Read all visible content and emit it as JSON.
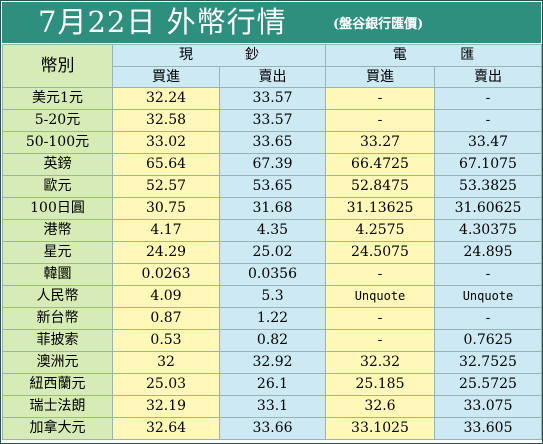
{
  "title": "7月22日 外幣行情",
  "subtitle": "(盤谷銀行匯價)",
  "headers": {
    "currency": "幣別",
    "cash_chars": [
      "現",
      "鈔"
    ],
    "wire_chars": [
      "電",
      "匯"
    ],
    "buy": "買進",
    "sell": "賣出"
  },
  "rows": [
    {
      "name": "美元1元",
      "cash_buy": "32.24",
      "cash_sell": "33.57",
      "wire_buy": "-",
      "wire_sell": "-"
    },
    {
      "name": "5-20元",
      "cash_buy": "32.58",
      "cash_sell": "33.57",
      "wire_buy": "-",
      "wire_sell": "-"
    },
    {
      "name": "50-100元",
      "cash_buy": "33.02",
      "cash_sell": "33.65",
      "wire_buy": "33.27",
      "wire_sell": "33.47"
    },
    {
      "name": "英鎊",
      "cash_buy": "65.64",
      "cash_sell": "67.39",
      "wire_buy": "66.4725",
      "wire_sell": "67.1075"
    },
    {
      "name": "歐元",
      "cash_buy": "52.57",
      "cash_sell": "53.65",
      "wire_buy": "52.8475",
      "wire_sell": "53.3825"
    },
    {
      "name": "100日圓",
      "cash_buy": "30.75",
      "cash_sell": "31.68",
      "wire_buy": "31.13625",
      "wire_sell": "31.60625"
    },
    {
      "name": "港幣",
      "cash_buy": "4.17",
      "cash_sell": "4.35",
      "wire_buy": "4.2575",
      "wire_sell": "4.30375"
    },
    {
      "name": "星元",
      "cash_buy": "24.29",
      "cash_sell": "25.02",
      "wire_buy": "24.5075",
      "wire_sell": "24.895"
    },
    {
      "name": "韓圜",
      "cash_buy": "0.0263",
      "cash_sell": "0.0356",
      "wire_buy": "-",
      "wire_sell": "-"
    },
    {
      "name": "人民幣",
      "cash_buy": "4.09",
      "cash_sell": "5.3",
      "wire_buy": "Unquote",
      "wire_sell": "Unquote"
    },
    {
      "name": "新台幣",
      "cash_buy": "0.87",
      "cash_sell": "1.22",
      "wire_buy": "-",
      "wire_sell": "-"
    },
    {
      "name": "菲披索",
      "cash_buy": "0.53",
      "cash_sell": "0.82",
      "wire_buy": "-",
      "wire_sell": "0.7625"
    },
    {
      "name": "澳洲元",
      "cash_buy": "32",
      "cash_sell": "32.92",
      "wire_buy": "32.32",
      "wire_sell": "32.7525"
    },
    {
      "name": "紐西蘭元",
      "cash_buy": "25.03",
      "cash_sell": "26.1",
      "wire_buy": "25.185",
      "wire_sell": "25.5725"
    },
    {
      "name": "瑞士法朗",
      "cash_buy": "32.19",
      "cash_sell": "33.1",
      "wire_buy": "32.6",
      "wire_sell": "33.075"
    },
    {
      "name": "加拿大元",
      "cash_buy": "32.64",
      "cash_sell": "33.66",
      "wire_buy": "33.1025",
      "wire_sell": "33.605"
    }
  ]
}
